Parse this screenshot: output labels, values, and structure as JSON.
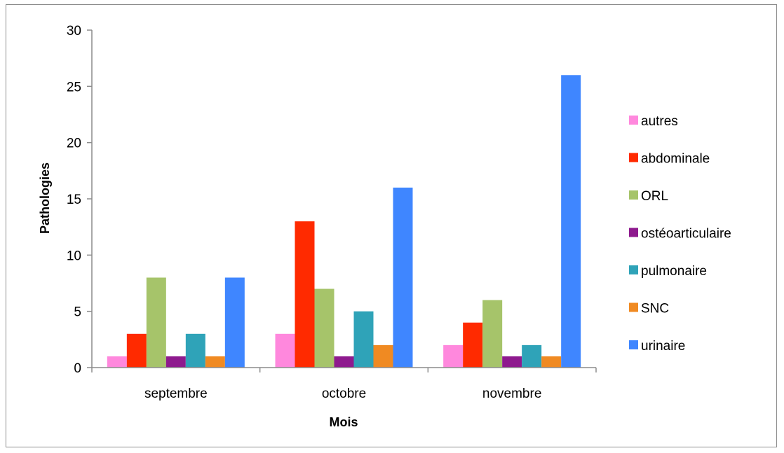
{
  "chart_data": {
    "type": "bar",
    "title": "",
    "xlabel": "Mois",
    "ylabel": "Pathologies",
    "ylim": [
      0,
      30
    ],
    "yticks": [
      0,
      5,
      10,
      15,
      20,
      25,
      30
    ],
    "grid": false,
    "legend_position": "right",
    "categories": [
      "septembre",
      "octobre",
      "novembre"
    ],
    "series": [
      {
        "name": "autres",
        "color": "#ff88dd",
        "values": [
          1,
          3,
          2
        ]
      },
      {
        "name": "abdominale",
        "color": "#ff2a00",
        "values": [
          3,
          13,
          4
        ]
      },
      {
        "name": "ORL",
        "color": "#a6c46a",
        "values": [
          8,
          7,
          6
        ]
      },
      {
        "name": "ostéoarticulaire",
        "color": "#8e1a8e",
        "values": [
          1,
          1,
          1
        ]
      },
      {
        "name": "pulmonaire",
        "color": "#2fa3b8",
        "values": [
          3,
          5,
          2
        ]
      },
      {
        "name": "SNC",
        "color": "#f08a22",
        "values": [
          1,
          2,
          1
        ]
      },
      {
        "name": "urinaire",
        "color": "#3f86ff",
        "values": [
          8,
          16,
          26
        ]
      }
    ]
  }
}
